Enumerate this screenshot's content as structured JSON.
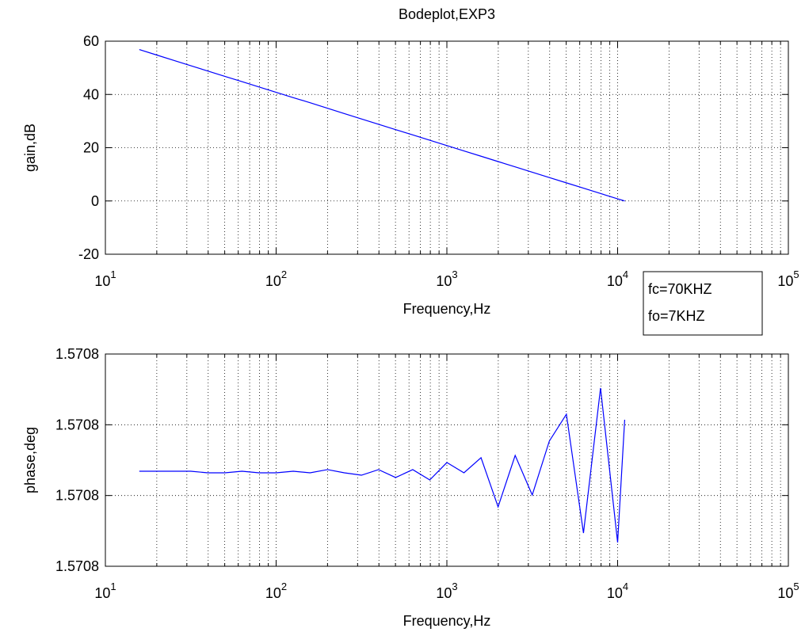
{
  "chart_data": [
    {
      "type": "line",
      "title": "Bodeplot,EXP3",
      "xlabel": "Frequency,Hz",
      "ylabel": "gain,dB",
      "xscale": "log",
      "grid": true,
      "x": [
        15.8,
        20,
        25.1,
        31.6,
        39.8,
        50.1,
        63.1,
        79.4,
        100,
        126,
        158,
        200,
        251,
        316,
        398,
        501,
        631,
        794,
        1000,
        1259,
        1585,
        1995,
        2512,
        3162,
        3981,
        5012,
        6310,
        7943,
        10000,
        11000
      ],
      "series": [
        {
          "color": "#0000ff",
          "values": [
            56.85,
            54.8,
            52.8,
            50.8,
            48.8,
            46.8,
            44.8,
            42.8,
            40.8,
            38.8,
            36.9,
            34.8,
            32.8,
            30.8,
            28.8,
            26.8,
            24.8,
            22.8,
            20.8,
            18.8,
            16.8,
            14.8,
            12.8,
            10.8,
            8.8,
            6.8,
            4.8,
            2.8,
            0.8,
            0
          ]
        }
      ],
      "xlim": [
        10,
        100000
      ],
      "xticks": [
        {
          "value": 10,
          "label": "10",
          "sup": "1"
        },
        {
          "value": 100,
          "label": "10",
          "sup": "2"
        },
        {
          "value": 1000,
          "label": "10",
          "sup": "3"
        },
        {
          "value": 10000,
          "label": "10",
          "sup": "4"
        },
        {
          "value": 100000,
          "label": "10",
          "sup": "5"
        }
      ],
      "xminorticks": [
        20,
        30,
        40,
        50,
        60,
        70,
        80,
        90,
        200,
        300,
        400,
        500,
        600,
        700,
        800,
        900,
        2000,
        3000,
        4000,
        5000,
        6000,
        7000,
        8000,
        9000,
        20000,
        30000,
        40000,
        50000,
        60000,
        70000,
        80000,
        90000
      ],
      "ylim": [
        -20,
        60
      ],
      "yticks": [
        -20,
        0,
        20,
        40,
        60
      ],
      "annotations": [
        "fc=70KHZ",
        "fo=7KHZ"
      ]
    },
    {
      "type": "line",
      "xlabel": "Frequency,Hz",
      "ylabel": "phase,deg",
      "xscale": "log",
      "grid": true,
      "x": [
        15.8,
        20,
        25.1,
        31.6,
        39.8,
        50.1,
        63.1,
        79.4,
        100,
        126,
        158,
        200,
        251,
        316,
        398,
        501,
        631,
        794,
        1000,
        1259,
        1585,
        1995,
        2512,
        3162,
        3981,
        5012,
        6310,
        7943,
        10000,
        11000
      ],
      "series": [
        {
          "color": "#0000ff",
          "values": [
            1.5707963343,
            1.5707963343,
            1.5707963343,
            1.5707963343,
            1.5707963321,
            1.5707963321,
            1.5707963343,
            1.5707963321,
            1.5707963321,
            1.5707963343,
            1.5707963321,
            1.5707963366,
            1.5707963321,
            1.5707963287,
            1.5707963366,
            1.5707963254,
            1.5707963366,
            1.570796322,
            1.5707963466,
            1.5707963321,
            1.5707963534,
            1.570796284,
            1.5707963567,
            1.5707963007,
            1.5707963769,
            1.5707964149,
            1.570796247,
            1.5707964519,
            1.5707962336,
            1.5707964071
          ]
        }
      ],
      "xlim": [
        10,
        100000
      ],
      "xticks": [
        {
          "value": 10,
          "label": "10",
          "sup": "1"
        },
        {
          "value": 100,
          "label": "10",
          "sup": "2"
        },
        {
          "value": 1000,
          "label": "10",
          "sup": "3"
        },
        {
          "value": 10000,
          "label": "10",
          "sup": "4"
        },
        {
          "value": 100000,
          "label": "10",
          "sup": "5"
        }
      ],
      "xminorticks": [
        20,
        30,
        40,
        50,
        60,
        70,
        80,
        90,
        200,
        300,
        400,
        500,
        600,
        700,
        800,
        900,
        2000,
        3000,
        4000,
        5000,
        6000,
        7000,
        8000,
        9000,
        20000,
        30000,
        40000,
        50000,
        60000,
        70000,
        80000,
        90000
      ],
      "ylim": [
        1.5707962,
        1.5707965
      ],
      "yticks": [
        {
          "value": 1.5707962,
          "label": "1.5708"
        },
        {
          "value": 1.5707963,
          "label": "1.5708"
        },
        {
          "value": 1.5707964,
          "label": "1.5708"
        },
        {
          "value": 1.5707965,
          "label": "1.5708"
        }
      ]
    }
  ]
}
